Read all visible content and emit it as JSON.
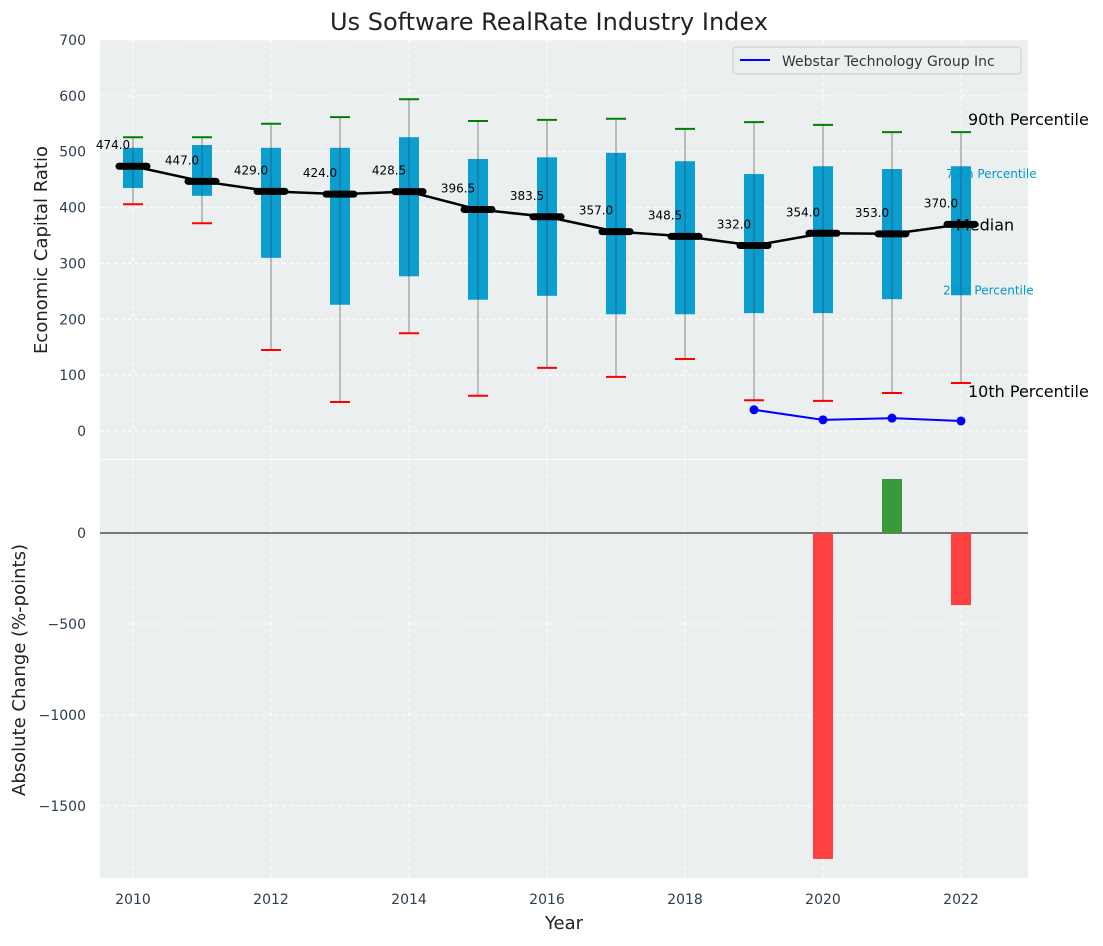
{
  "chart_data": [
    {
      "type": "box-range",
      "title": "Us Software RealRate Industry Index",
      "xlabel": "",
      "ylabel": "Economic Capital Ratio",
      "ylim": [
        0,
        700
      ],
      "yticks": [
        0,
        100,
        200,
        300,
        400,
        500,
        600,
        700
      ],
      "grid": true,
      "x": [
        2010,
        2011,
        2012,
        2013,
        2014,
        2015,
        2016,
        2017,
        2018,
        2019,
        2020,
        2021,
        2022
      ],
      "p90": [
        526,
        526,
        550,
        562,
        594,
        555,
        557,
        559,
        541,
        553,
        548,
        535,
        535
      ],
      "p75": [
        507,
        512,
        507,
        507,
        526,
        487,
        490,
        498,
        483,
        460,
        474,
        469,
        474
      ],
      "median": [
        474.0,
        447.0,
        429.0,
        424.0,
        428.5,
        396.5,
        383.5,
        357.0,
        348.5,
        332.0,
        354.0,
        353.0,
        370.0
      ],
      "median_labels": [
        "474.0",
        "447.0",
        "429.0",
        "424.0",
        "428.5",
        "396.5",
        "383.5",
        "357.0",
        "348.5",
        "332.0",
        "354.0",
        "353.0",
        "370.0"
      ],
      "p25": [
        435,
        421,
        310,
        226,
        277,
        235,
        242,
        209,
        209,
        211,
        211,
        236,
        243
      ],
      "p10": [
        406,
        372,
        145,
        52,
        175,
        63,
        113,
        97,
        129,
        55,
        54,
        68,
        86
      ],
      "annotations": [
        "90th Percentile",
        "75th Percentile",
        "Median",
        "25th Percentile",
        "10th Percentile"
      ],
      "series": [
        {
          "name": "Webstar Technology Group Inc",
          "x": [
            2019,
            2020,
            2021,
            2022
          ],
          "values": [
            38,
            20,
            23,
            18
          ],
          "color": "#0000ff"
        }
      ],
      "legend": "top-right",
      "colors": {
        "box": "#0099cc",
        "p90": "#008000",
        "p10": "#ff0000",
        "median": "#000000",
        "background": "#eceff0"
      }
    },
    {
      "type": "bar",
      "xlabel": "Year",
      "ylabel": "Absolute Change (%-points)",
      "ylim": [
        -1896,
        401
      ],
      "yticks": [
        0,
        -500,
        -1000,
        -1500
      ],
      "ytick_labels": [
        "0",
        "−500",
        "−1000",
        "−1500"
      ],
      "xticks": [
        2010,
        2012,
        2014,
        2016,
        2018,
        2020,
        2022
      ],
      "xlim": [
        2009.5,
        2023
      ],
      "x": [
        2020,
        2021,
        2022
      ],
      "values": [
        -1791,
        297,
        -396
      ],
      "colors": {
        "positive": "#3a9a3a",
        "negative": "#ff4040"
      }
    }
  ]
}
